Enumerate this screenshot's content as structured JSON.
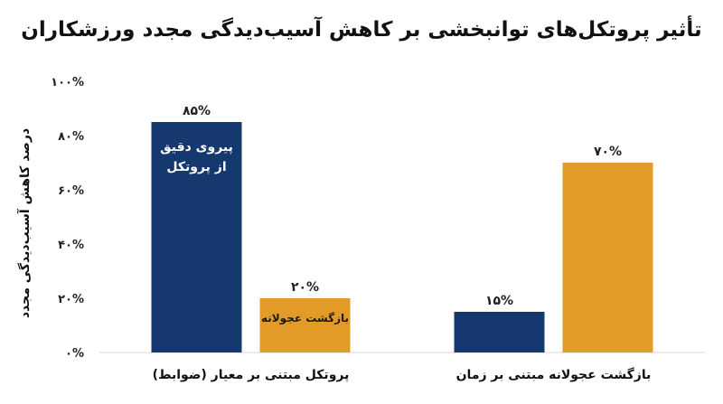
{
  "chart_data": {
    "type": "bar",
    "title": "تأثیر پروتکل‌های توانبخشی بر کاهش آسیب‌دیدگی مجدد ورزشکاران",
    "ylabel": "درصد کاهش آسیب‌دیدگی مجدد",
    "xlabel": "",
    "ylim": [
      0,
      100
    ],
    "yticks": [
      "۰%",
      "۲۰%",
      "۴۰%",
      "۶۰%",
      "۸۰%",
      "۱۰۰%"
    ],
    "categories": [
      "پروتکل مبتنی بر معیار (ضوابط)",
      "بازگشت عجولانه مبتنی بر زمان"
    ],
    "series": [
      {
        "values": [
          85,
          15
        ],
        "labels": [
          "۸۵%",
          "۱۵%"
        ],
        "color": "#15396e"
      },
      {
        "values": [
          20,
          70
        ],
        "labels": [
          "۲۰%",
          "۷۰%"
        ],
        "color": "#e39b27"
      }
    ],
    "annotations": [
      {
        "series": 0,
        "category": 0,
        "lines": [
          "پیروی دقیق",
          "از پروتکل"
        ]
      },
      {
        "series": 1,
        "category": 0,
        "lines": [
          "بازگشت عجولانه"
        ]
      }
    ],
    "grid": false,
    "legend": "none"
  }
}
